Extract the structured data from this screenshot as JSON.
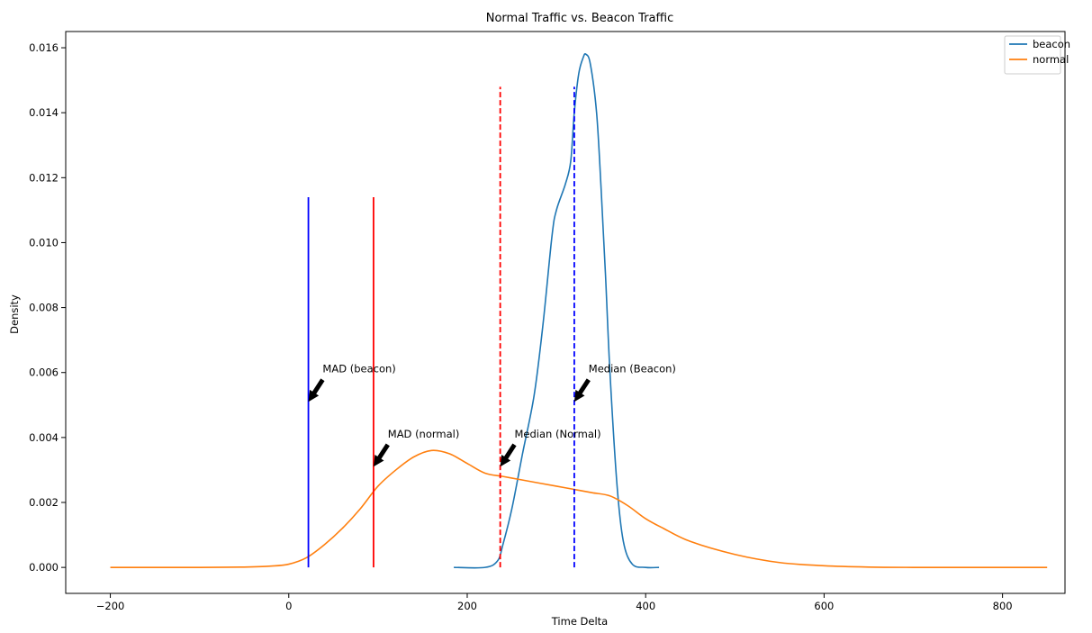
{
  "chart_data": {
    "type": "line",
    "title": "Normal Traffic vs. Beacon Traffic",
    "xlabel": "Time Delta",
    "ylabel": "Density",
    "xlim": [
      -250,
      870
    ],
    "ylim": [
      -0.0008,
      0.0165
    ],
    "xticks": [
      -200,
      0,
      200,
      400,
      600,
      800
    ],
    "yticks": [
      0.0,
      0.002,
      0.004,
      0.006,
      0.008,
      0.01,
      0.012,
      0.014,
      0.016
    ],
    "ytick_labels": [
      "0.000",
      "0.002",
      "0.004",
      "0.006",
      "0.008",
      "0.010",
      "0.012",
      "0.014",
      "0.016"
    ],
    "grid": false,
    "legend_position": "top-right",
    "series": [
      {
        "name": "beacon",
        "color": "#1f77b4",
        "x": [
          185,
          220,
          234,
          240,
          250,
          262,
          275,
          285,
          295,
          300,
          310,
          316,
          320,
          325,
          330,
          333,
          338,
          345,
          350,
          355,
          360,
          368,
          375,
          385,
          400,
          415
        ],
        "y": [
          0,
          0,
          0.0002,
          0.0007,
          0.0018,
          0.0035,
          0.0053,
          0.0075,
          0.0102,
          0.011,
          0.0118,
          0.0125,
          0.014,
          0.0152,
          0.0157,
          0.0158,
          0.0155,
          0.014,
          0.0117,
          0.009,
          0.006,
          0.0025,
          0.0008,
          0.0001,
          0,
          0
        ]
      },
      {
        "name": "normal",
        "color": "#ff7f0e",
        "x": [
          -200,
          -100,
          -50,
          -20,
          0,
          20,
          40,
          60,
          80,
          100,
          120,
          140,
          160,
          180,
          200,
          220,
          240,
          260,
          280,
          300,
          320,
          340,
          360,
          380,
          400,
          420,
          450,
          500,
          550,
          600,
          650,
          700,
          750,
          800,
          850
        ],
        "y": [
          0,
          0,
          1e-05,
          4e-05,
          0.0001,
          0.0003,
          0.0007,
          0.0012,
          0.0018,
          0.0025,
          0.003,
          0.0034,
          0.0036,
          0.0035,
          0.0032,
          0.0029,
          0.0028,
          0.0027,
          0.0026,
          0.0025,
          0.0024,
          0.0023,
          0.0022,
          0.0019,
          0.0015,
          0.0012,
          0.0008,
          0.0004,
          0.00015,
          5e-05,
          1e-05,
          0,
          0,
          0,
          0
        ]
      }
    ],
    "vlines": [
      {
        "name": "mad-beacon-line",
        "x": 22,
        "ymin": 0,
        "ymax": 0.0114,
        "color": "#0000ff",
        "style": "solid"
      },
      {
        "name": "mad-normal-line",
        "x": 95,
        "ymin": 0,
        "ymax": 0.0114,
        "color": "#ff0000",
        "style": "solid"
      },
      {
        "name": "median-normal-line",
        "x": 237,
        "ymin": 0,
        "ymax": 0.0148,
        "color": "#ff0000",
        "style": "dashed"
      },
      {
        "name": "median-beacon-line",
        "x": 320,
        "ymin": 0,
        "ymax": 0.0148,
        "color": "#0000ff",
        "style": "dashed"
      }
    ],
    "annotations": [
      {
        "text": "MAD (beacon)",
        "xy": [
          22,
          0.0051
        ],
        "xytext": [
          38,
          0.006
        ]
      },
      {
        "text": "MAD (normal)",
        "xy": [
          95,
          0.0031
        ],
        "xytext": [
          111,
          0.004
        ]
      },
      {
        "text": "Median (Normal)",
        "xy": [
          237,
          0.0031
        ],
        "xytext": [
          253,
          0.004
        ]
      },
      {
        "text": "Median (Beacon)",
        "xy": [
          320,
          0.0051
        ],
        "xytext": [
          336,
          0.006
        ]
      }
    ]
  }
}
